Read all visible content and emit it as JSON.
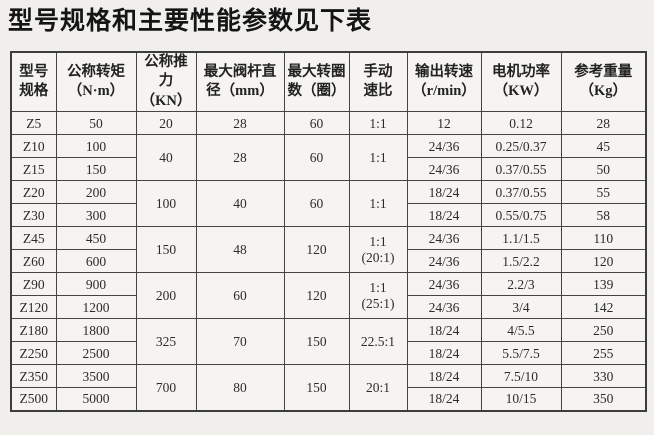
{
  "title": "型号规格和主要性能参数见下表",
  "table": {
    "columns": [
      {
        "id": "model",
        "label": "型号\n规格"
      },
      {
        "id": "torque",
        "label": "公称转矩\n（N·m）"
      },
      {
        "id": "thrust",
        "label": "公称推力\n（KN）"
      },
      {
        "id": "stem",
        "label": "最大阀杆直\n径（mm）"
      },
      {
        "id": "turns",
        "label": "最大转圈\n数（圈）"
      },
      {
        "id": "ratio",
        "label": "手动\n速比"
      },
      {
        "id": "speed",
        "label": "输出转速\n（r/min）"
      },
      {
        "id": "power",
        "label": "电机功率\n（KW）"
      },
      {
        "id": "weight",
        "label": "参考重量\n（Kg）"
      }
    ],
    "rows": [
      {
        "cells": [
          {
            "t": "Z5"
          },
          {
            "t": "50"
          },
          {
            "t": "20"
          },
          {
            "t": "28",
            "rs": 1
          },
          {
            "t": "60",
            "rs": 1
          },
          {
            "t": "1:1",
            "rs": 1
          },
          {
            "t": "12"
          },
          {
            "t": "0.12"
          },
          {
            "t": "28"
          }
        ]
      },
      {
        "cells": [
          {
            "t": "Z10"
          },
          {
            "t": "100"
          },
          {
            "t": "40",
            "rs": 2
          },
          {
            "t": "28",
            "rs": 2
          },
          {
            "t": "60",
            "rs": 2
          },
          {
            "t": "1:1",
            "rs": 2
          },
          {
            "t": "24/36"
          },
          {
            "t": "0.25/0.37"
          },
          {
            "t": "45"
          }
        ]
      },
      {
        "cells": [
          {
            "t": "Z15"
          },
          {
            "t": "150"
          },
          null,
          null,
          null,
          null,
          {
            "t": "24/36"
          },
          {
            "t": "0.37/0.55"
          },
          {
            "t": "50"
          }
        ]
      },
      {
        "cells": [
          {
            "t": "Z20"
          },
          {
            "t": "200"
          },
          {
            "t": "100",
            "rs": 2
          },
          {
            "t": "40",
            "rs": 2
          },
          {
            "t": "60",
            "rs": 2
          },
          {
            "t": "1:1",
            "rs": 2
          },
          {
            "t": "18/24"
          },
          {
            "t": "0.37/0.55"
          },
          {
            "t": "55"
          }
        ]
      },
      {
        "cells": [
          {
            "t": "Z30"
          },
          {
            "t": "300"
          },
          null,
          null,
          null,
          null,
          {
            "t": "18/24"
          },
          {
            "t": "0.55/0.75"
          },
          {
            "t": "58"
          }
        ]
      },
      {
        "cells": [
          {
            "t": "Z45"
          },
          {
            "t": "450"
          },
          {
            "t": "150",
            "rs": 2
          },
          {
            "t": "48",
            "rs": 2
          },
          {
            "t": "120",
            "rs": 2
          },
          {
            "t": "1:1\n(20:1)",
            "rs": 2
          },
          {
            "t": "24/36"
          },
          {
            "t": "1.1/1.5"
          },
          {
            "t": "110"
          }
        ]
      },
      {
        "cells": [
          {
            "t": "Z60"
          },
          {
            "t": "600"
          },
          null,
          null,
          null,
          null,
          {
            "t": "24/36"
          },
          {
            "t": "1.5/2.2"
          },
          {
            "t": "120"
          }
        ]
      },
      {
        "cells": [
          {
            "t": "Z90"
          },
          {
            "t": "900"
          },
          {
            "t": "200",
            "rs": 2
          },
          {
            "t": "60",
            "rs": 2
          },
          {
            "t": "120",
            "rs": 2
          },
          {
            "t": "1:1\n(25:1)",
            "rs": 2
          },
          {
            "t": "24/36"
          },
          {
            "t": "2.2/3"
          },
          {
            "t": "139"
          }
        ]
      },
      {
        "cells": [
          {
            "t": "Z120"
          },
          {
            "t": "1200"
          },
          null,
          null,
          null,
          null,
          {
            "t": "24/36"
          },
          {
            "t": "3/4"
          },
          {
            "t": "142"
          }
        ]
      },
      {
        "cells": [
          {
            "t": "Z180"
          },
          {
            "t": "1800"
          },
          {
            "t": "325",
            "rs": 2
          },
          {
            "t": "70",
            "rs": 2
          },
          {
            "t": "150",
            "rs": 2
          },
          {
            "t": "22.5:1",
            "rs": 2
          },
          {
            "t": "18/24"
          },
          {
            "t": "4/5.5"
          },
          {
            "t": "250"
          }
        ]
      },
      {
        "cells": [
          {
            "t": "Z250"
          },
          {
            "t": "2500"
          },
          null,
          null,
          null,
          null,
          {
            "t": "18/24"
          },
          {
            "t": "5.5/7.5"
          },
          {
            "t": "255"
          }
        ]
      },
      {
        "cells": [
          {
            "t": "Z350"
          },
          {
            "t": "3500"
          },
          {
            "t": "700",
            "rs": 2
          },
          {
            "t": "80",
            "rs": 2
          },
          {
            "t": "150",
            "rs": 2
          },
          {
            "t": "20:1",
            "rs": 2
          },
          {
            "t": "18/24"
          },
          {
            "t": "7.5/10"
          },
          {
            "t": "330"
          }
        ]
      },
      {
        "cells": [
          {
            "t": "Z500"
          },
          {
            "t": "5000"
          },
          null,
          null,
          null,
          null,
          {
            "t": "18/24"
          },
          {
            "t": "10/15"
          },
          {
            "t": "350"
          }
        ]
      }
    ]
  }
}
